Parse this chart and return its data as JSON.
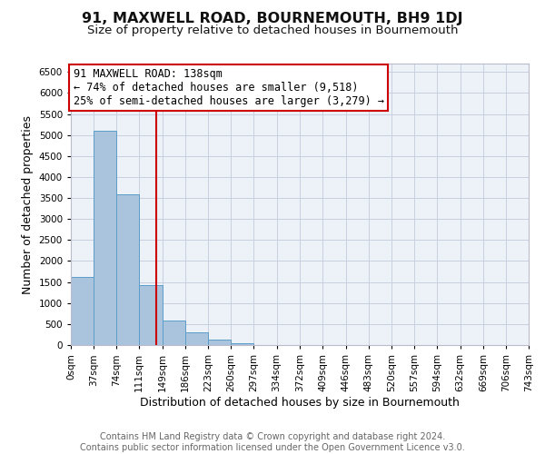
{
  "title": "91, MAXWELL ROAD, BOURNEMOUTH, BH9 1DJ",
  "subtitle": "Size of property relative to detached houses in Bournemouth",
  "xlabel": "Distribution of detached houses by size in Bournemouth",
  "ylabel": "Number of detached properties",
  "footer_line1": "Contains HM Land Registry data © Crown copyright and database right 2024.",
  "footer_line2": "Contains public sector information licensed under the Open Government Licence v3.0.",
  "bin_edges": [
    0,
    37,
    74,
    111,
    149,
    186,
    223,
    260,
    297,
    334,
    372,
    409,
    446,
    483,
    520,
    557,
    594,
    632,
    669,
    706,
    743
  ],
  "bar_heights": [
    1630,
    5090,
    3590,
    1430,
    580,
    300,
    140,
    50,
    0,
    0,
    0,
    0,
    0,
    0,
    0,
    0,
    0,
    0,
    0,
    0
  ],
  "bar_color": "#aac4de",
  "bar_edge_color": "#5b9dc9",
  "property_line_x": 138,
  "property_line_color": "#cc0000",
  "annotation_line1": "91 MAXWELL ROAD: 138sqm",
  "annotation_line2": "← 74% of detached houses are smaller (9,518)",
  "annotation_line3": "25% of semi-detached houses are larger (3,279) →",
  "annotation_box_color": "#cc0000",
  "ylim": [
    0,
    6700
  ],
  "yticks": [
    0,
    500,
    1000,
    1500,
    2000,
    2500,
    3000,
    3500,
    4000,
    4500,
    5000,
    5500,
    6000,
    6500
  ],
  "x_tick_labels": [
    "0sqm",
    "37sqm",
    "74sqm",
    "111sqm",
    "149sqm",
    "186sqm",
    "223sqm",
    "260sqm",
    "297sqm",
    "334sqm",
    "372sqm",
    "409sqm",
    "446sqm",
    "483sqm",
    "520sqm",
    "557sqm",
    "594sqm",
    "632sqm",
    "669sqm",
    "706sqm",
    "743sqm"
  ],
  "grid_color": "#c8cfe0",
  "bg_color": "#edf1f8",
  "title_fontsize": 11.5,
  "subtitle_fontsize": 9.5,
  "axis_label_fontsize": 9,
  "tick_fontsize": 7.5,
  "footer_fontsize": 7,
  "annotation_fontsize": 8.5
}
